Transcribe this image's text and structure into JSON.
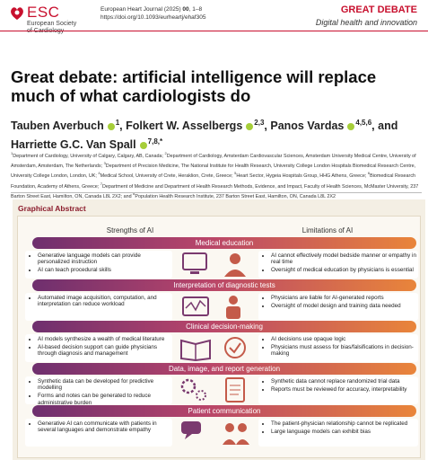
{
  "header": {
    "logo_text": "ESC",
    "society": "European Society of Cardiology",
    "journal": "European Heart Journal (2025) ",
    "volume": "00",
    "pages": ", 1–8",
    "doi": "https://doi.org/10.1093/eurheartj/ehaf305",
    "category": "GREAT DEBATE",
    "subcategory": "Digital health and innovation"
  },
  "title": "Great debate: artificial intelligence will replace much of what cardiologists do",
  "authors": [
    {
      "name": "Tauben Averbuch",
      "sup": "1",
      "sep": ","
    },
    {
      "name": "Folkert W. Asselbergs",
      "sup": "2,3",
      "sep": ","
    },
    {
      "name": "Panos Vardas",
      "sup": "4,5,6",
      "sep": ", and"
    },
    {
      "name": "Harriette G.C. Van Spall",
      "sup": "7,8,*"
    }
  ],
  "affiliations": [
    {
      "sup": "1",
      "text": "Department of Cardiology, University of Calgary, Calgary, AB, Canada; "
    },
    {
      "sup": "2",
      "text": "Department of Cardiology, Amsterdam Cardiovascular Sciences, Amsterdam University Medical Centre, University of Amsterdam, Amsterdam, The Netherlands; "
    },
    {
      "sup": "3",
      "text": "Department of Precision Medicine, The National Institute for Health Research, University College London Hospitals Biomedical Research Centre, University College London, London, UK; "
    },
    {
      "sup": "4",
      "text": "Medical School, University of Crete, Heraklion, Crete, Greece; "
    },
    {
      "sup": "5",
      "text": "Heart Sector, Hygeia Hospitals Group, HHG Athens, Greece; "
    },
    {
      "sup": "6",
      "text": "Biomedical Research Foundation, Academy of Athens, Greece; "
    },
    {
      "sup": "7",
      "text": "Department of Medicine and Department of Health Research Methods, Evidence, and Impact, Faculty of Health Sciences, McMaster University, 237 Barton Street East, Hamilton, ON, Canada L8L 2X2; and "
    },
    {
      "sup": "8",
      "text": "Population Health Research Institute, 237 Barton Street East, Hamilton, ON, Canada L8L 2X2"
    }
  ],
  "graphical_abstract": {
    "heading": "Graphical Abstract",
    "left_head": "Strengths of AI",
    "right_head": "Limitations of AI",
    "sections": [
      {
        "title": "Medical education",
        "strengths": [
          "Generative language models can provide personalized instruction",
          "AI can teach procedural skills"
        ],
        "limitations": [
          "AI cannot effectively model bedside manner or empathy in real time",
          "Oversight of medical education by physicians is essential"
        ]
      },
      {
        "title": "Interpretation of diagnostic tests",
        "strengths": [
          "Automated image acquisition, computation, and interpretation can reduce workload"
        ],
        "limitations": [
          "Physicians are liable for AI-generated reports",
          "Oversight of model design and training data needed"
        ]
      },
      {
        "title": "Clinical decision-making",
        "strengths": [
          "AI models synthesize a wealth of medical literature",
          "AI-based decision support can guide physicians through diagnosis and management"
        ],
        "limitations": [
          "AI decisions use opaque logic",
          "Physicians must assess for bias/falsifications in decision-making"
        ]
      },
      {
        "title": "Data, image, and report generation",
        "strengths": [
          "Synthetic data can be developed for predictive modelling",
          "Forms and notes can be generated to reduce administrative burden"
        ],
        "limitations": [
          "Synthetic data cannot replace randomized trial data",
          "Reports must be reviewed for accuracy, interpretability"
        ]
      },
      {
        "title": "Patient communication",
        "strengths": [
          "Generative AI can communicate with patients in several languages and demonstrate empathy"
        ],
        "limitations": [
          "The patient-physician relationship cannot be replicated",
          "Large language models can exhibit bias"
        ]
      }
    ]
  }
}
